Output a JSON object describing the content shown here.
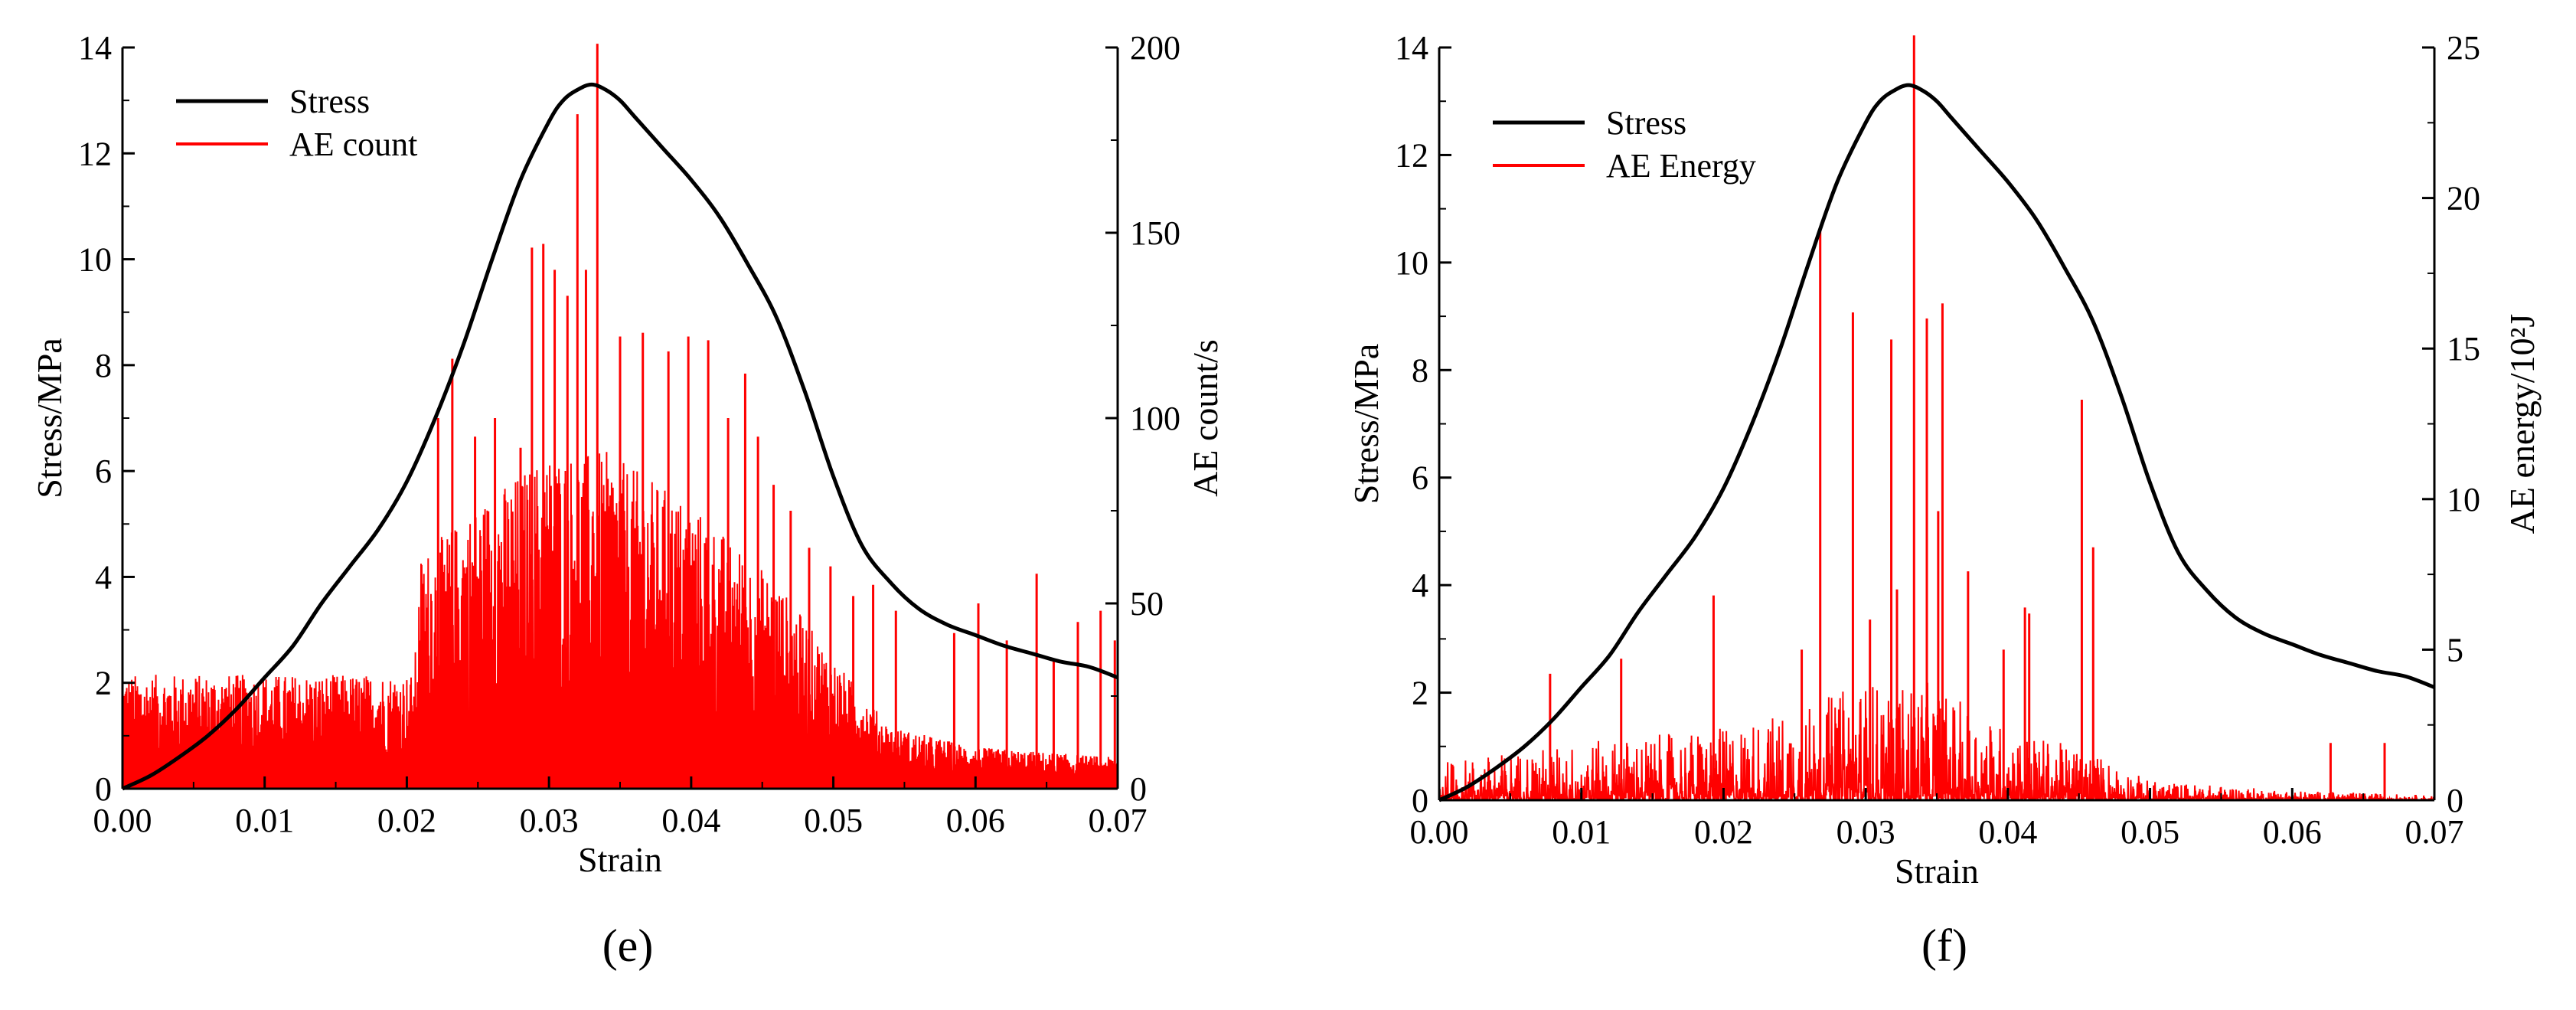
{
  "chart_data": [
    {
      "type": "line",
      "panel_label": "(e)",
      "xlabel": "Strain",
      "ylabel": "Stress/MPa",
      "y2label": "AE count/s",
      "xlim": [
        0,
        0.07
      ],
      "ylim": [
        0,
        14
      ],
      "y2lim": [
        0,
        200
      ],
      "xticks": [
        "0.00",
        "0.01",
        "0.02",
        "0.03",
        "0.04",
        "0.05",
        "0.06",
        "0.07"
      ],
      "yticks": [
        "0",
        "2",
        "4",
        "6",
        "8",
        "10",
        "12",
        "14"
      ],
      "y2ticks": [
        "0",
        "50",
        "100",
        "150",
        "200"
      ],
      "legend": {
        "position": "top-left",
        "entries": [
          "Stress",
          "AE count"
        ]
      },
      "stress": {
        "name": "Stress",
        "color": "#000000",
        "x": [
          0,
          0.002,
          0.004,
          0.006,
          0.008,
          0.01,
          0.012,
          0.014,
          0.016,
          0.018,
          0.02,
          0.022,
          0.024,
          0.026,
          0.028,
          0.03,
          0.031,
          0.032,
          0.033,
          0.034,
          0.035,
          0.036,
          0.038,
          0.04,
          0.042,
          0.044,
          0.046,
          0.048,
          0.05,
          0.052,
          0.054,
          0.056,
          0.058,
          0.06,
          0.062,
          0.064,
          0.066,
          0.068,
          0.07
        ],
        "y": [
          0,
          0.25,
          0.6,
          1.0,
          1.5,
          2.1,
          2.7,
          3.5,
          4.2,
          4.9,
          5.8,
          7.0,
          8.4,
          10.0,
          11.5,
          12.6,
          13.0,
          13.2,
          13.3,
          13.2,
          13.0,
          12.7,
          12.1,
          11.5,
          10.8,
          9.9,
          8.9,
          7.5,
          5.9,
          4.6,
          3.9,
          3.4,
          3.1,
          2.9,
          2.7,
          2.55,
          2.4,
          2.3,
          2.1
        ]
      },
      "ae": {
        "name": "AE count",
        "color": "#ff0000",
        "base": [
          [
            0,
            22
          ],
          [
            0.0205,
            22
          ],
          [
            0.021,
            45
          ],
          [
            0.025,
            55
          ],
          [
            0.03,
            65
          ],
          [
            0.034,
            65
          ],
          [
            0.04,
            55
          ],
          [
            0.046,
            40
          ],
          [
            0.05,
            25
          ],
          [
            0.054,
            12
          ],
          [
            0.06,
            8
          ],
          [
            0.07,
            6
          ]
        ],
        "peaks": [
          [
            0.0222,
            100
          ],
          [
            0.0232,
            116
          ],
          [
            0.0248,
            95
          ],
          [
            0.0262,
            100
          ],
          [
            0.028,
            92
          ],
          [
            0.0288,
            146
          ],
          [
            0.0296,
            147
          ],
          [
            0.0304,
            140
          ],
          [
            0.0313,
            133
          ],
          [
            0.032,
            182
          ],
          [
            0.0326,
            140
          ],
          [
            0.0334,
            201
          ],
          [
            0.035,
            122
          ],
          [
            0.0366,
            123
          ],
          [
            0.0384,
            118
          ],
          [
            0.0398,
            122
          ],
          [
            0.0412,
            121
          ],
          [
            0.0426,
            100
          ],
          [
            0.0438,
            112
          ],
          [
            0.0447,
            95
          ],
          [
            0.0458,
            82
          ],
          [
            0.047,
            75
          ],
          [
            0.0483,
            65
          ],
          [
            0.0498,
            60
          ],
          [
            0.0514,
            52
          ],
          [
            0.0528,
            55
          ],
          [
            0.0544,
            48
          ],
          [
            0.0585,
            42
          ],
          [
            0.0602,
            50
          ],
          [
            0.0622,
            40
          ],
          [
            0.0643,
            58
          ],
          [
            0.0655,
            35
          ],
          [
            0.0672,
            45
          ],
          [
            0.0688,
            48
          ],
          [
            0.0698,
            40
          ]
        ]
      }
    },
    {
      "type": "line",
      "panel_label": "(f)",
      "xlabel": "Strain",
      "ylabel": "Stress/MPa",
      "y2label": "AE energy/10²J",
      "xlim": [
        0,
        0.07
      ],
      "ylim": [
        0,
        14
      ],
      "y2lim": [
        0,
        25
      ],
      "xticks": [
        "0.00",
        "0.01",
        "0.02",
        "0.03",
        "0.04",
        "0.05",
        "0.06",
        "0.07"
      ],
      "yticks": [
        "0",
        "2",
        "4",
        "6",
        "8",
        "10",
        "12",
        "14"
      ],
      "y2ticks": [
        "0",
        "5",
        "10",
        "15",
        "20",
        "25"
      ],
      "legend": {
        "position": "top-left",
        "entries": [
          "Stress",
          "AE Energy"
        ]
      },
      "stress": {
        "name": "Stress",
        "color": "#000000",
        "x": [
          0,
          0.002,
          0.004,
          0.006,
          0.008,
          0.01,
          0.012,
          0.014,
          0.016,
          0.018,
          0.02,
          0.022,
          0.024,
          0.026,
          0.028,
          0.03,
          0.031,
          0.032,
          0.033,
          0.034,
          0.035,
          0.036,
          0.038,
          0.04,
          0.042,
          0.044,
          0.046,
          0.048,
          0.05,
          0.052,
          0.054,
          0.056,
          0.058,
          0.06,
          0.062,
          0.064,
          0.066,
          0.068,
          0.07
        ],
        "y": [
          0,
          0.25,
          0.6,
          1.0,
          1.5,
          2.1,
          2.7,
          3.5,
          4.2,
          4.9,
          5.8,
          7.0,
          8.4,
          10.0,
          11.5,
          12.6,
          13.0,
          13.2,
          13.3,
          13.2,
          13.0,
          12.7,
          12.1,
          11.5,
          10.8,
          9.9,
          8.9,
          7.5,
          5.9,
          4.6,
          3.9,
          3.4,
          3.1,
          2.9,
          2.7,
          2.55,
          2.4,
          2.3,
          2.1
        ]
      },
      "ae": {
        "name": "AE Energy",
        "color": "#ff0000",
        "base": [
          [
            0,
            0.8
          ],
          [
            0.01,
            1.2
          ],
          [
            0.02,
            1.5
          ],
          [
            0.026,
            2.0
          ],
          [
            0.03,
            2.5
          ],
          [
            0.034,
            2.5
          ],
          [
            0.04,
            1.5
          ],
          [
            0.046,
            1.0
          ],
          [
            0.05,
            0.4
          ],
          [
            0.06,
            0.2
          ],
          [
            0.07,
            0.1
          ]
        ],
        "peaks": [
          [
            0.0078,
            4.2
          ],
          [
            0.0128,
            4.7
          ],
          [
            0.0193,
            6.8
          ],
          [
            0.0255,
            5.0
          ],
          [
            0.0268,
            19.0
          ],
          [
            0.0291,
            16.2
          ],
          [
            0.0303,
            6.0
          ],
          [
            0.0318,
            15.3
          ],
          [
            0.0322,
            7.0
          ],
          [
            0.0334,
            25.4
          ],
          [
            0.0343,
            16.0
          ],
          [
            0.0351,
            9.6
          ],
          [
            0.0354,
            16.5
          ],
          [
            0.0372,
            7.6
          ],
          [
            0.0397,
            5.0
          ],
          [
            0.0412,
            6.4
          ],
          [
            0.0415,
            6.2
          ],
          [
            0.0452,
            13.3
          ],
          [
            0.046,
            8.4
          ],
          [
            0.0627,
            1.9
          ],
          [
            0.0665,
            1.9
          ]
        ]
      }
    }
  ]
}
